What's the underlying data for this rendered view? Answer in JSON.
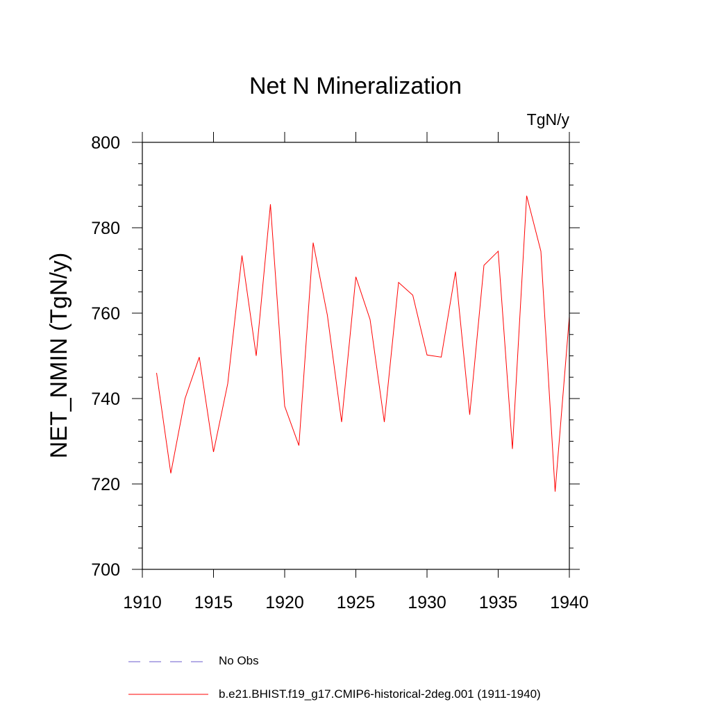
{
  "chart_data": {
    "type": "line",
    "title": "Net N Mineralization",
    "units_label": "TgN/y",
    "xlabel": "",
    "ylabel": "NET_NMIN  (TgN/y)",
    "xlim": [
      1910,
      1940
    ],
    "ylim": [
      700,
      800
    ],
    "x_ticks": [
      1910,
      1915,
      1920,
      1925,
      1930,
      1935,
      1940
    ],
    "y_ticks": [
      700,
      720,
      740,
      760,
      780,
      800
    ],
    "grid": false,
    "legend_position": "bottom",
    "series": [
      {
        "name": "b.e21.BHIST.f19_g17.CMIP6-historical-2deg.001 (1911-1940)",
        "color": "#ff0000",
        "style": "solid",
        "x": [
          1911,
          1912,
          1913,
          1914,
          1915,
          1916,
          1917,
          1918,
          1919,
          1920,
          1921,
          1922,
          1923,
          1924,
          1925,
          1926,
          1927,
          1928,
          1929,
          1930,
          1931,
          1932,
          1933,
          1934,
          1935,
          1936,
          1937,
          1938,
          1939,
          1940
        ],
        "y": [
          746,
          722.5,
          740,
          749.7,
          727.5,
          743.5,
          773.5,
          750,
          785.5,
          738.2,
          729,
          776.5,
          759.5,
          734.5,
          768.5,
          758.5,
          734.5,
          767.2,
          764.2,
          750.2,
          749.7,
          769.7,
          736.2,
          771.2,
          774.5,
          728.2,
          787.5,
          774.5,
          718.2,
          759.2
        ]
      }
    ],
    "legend": [
      {
        "label": "No Obs",
        "color": "#6a5acd",
        "style": "dashed"
      },
      {
        "label": "b.e21.BHIST.f19_g17.CMIP6-historical-2deg.001 (1911-1940)",
        "color": "#ff0000",
        "style": "solid"
      }
    ]
  }
}
